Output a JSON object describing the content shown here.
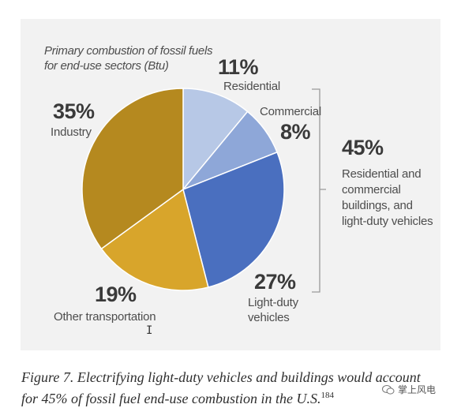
{
  "chart_data": {
    "type": "pie",
    "title_lines": [
      "Primary combustion of fossil fuels",
      "for end-use sectors (Btu)"
    ],
    "slices": [
      {
        "name": "Residential",
        "value": 11,
        "pct_label": "11%",
        "color": "#b7c8e6"
      },
      {
        "name": "Commercial",
        "value": 8,
        "pct_label": "8%",
        "color": "#8ea7d8"
      },
      {
        "name_lines": [
          "Light-duty",
          "vehicles"
        ],
        "value": 27,
        "pct_label": "27%",
        "color": "#4a6fbf"
      },
      {
        "name": "Other transportation",
        "value": 19,
        "pct_label": "19%",
        "color": "#d8a52b"
      },
      {
        "name": "Industry",
        "value": 35,
        "pct_label": "35%",
        "color": "#b5891f"
      }
    ],
    "group_annotation": {
      "pct_label": "45%",
      "text_lines": [
        "Residential and",
        "commercial",
        "buildings, and",
        "light-duty vehicles"
      ]
    }
  },
  "caption": {
    "line1": "Figure 7. Electrifying light-duty vehicles and buildings would account",
    "line2": "for 45% of fossil fuel end-use combustion in the U.S.",
    "footnote": "184"
  },
  "watermark": {
    "text": "掌上风电",
    "icon": "wechat-icon"
  }
}
